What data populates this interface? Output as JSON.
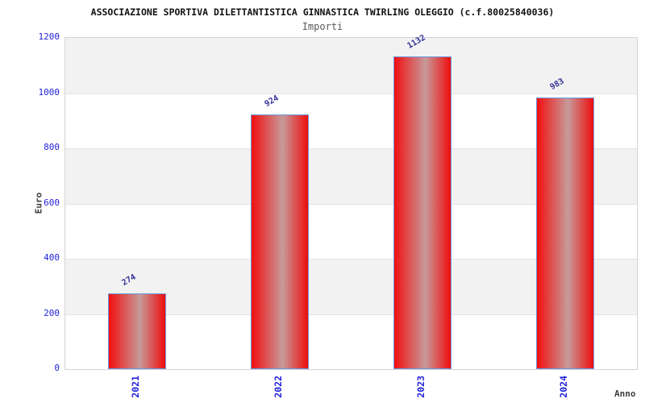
{
  "header": {
    "title": "ASSOCIAZIONE SPORTIVA DILETTANTISTICA GINNASTICA TWIRLING OLEGGIO (c.f.80025840036)",
    "subtitle": "Importi"
  },
  "chart_data": {
    "type": "bar",
    "title": "ASSOCIAZIONE SPORTIVA DILETTANTISTICA GINNASTICA TWIRLING OLEGGIO (c.f.80025840036)",
    "subtitle": "Importi",
    "categories": [
      "2021",
      "2022",
      "2023",
      "2024"
    ],
    "values": [
      274,
      924,
      1132,
      983
    ],
    "xlabel": "Anno",
    "ylabel": "Euro",
    "ylim": [
      0,
      1200
    ],
    "yticks": [
      0,
      200,
      400,
      600,
      800,
      1000,
      1200
    ],
    "grid": "alternating-horizontal-bands",
    "legend": "none",
    "colors": {
      "bar_red": "#f20f0f",
      "bar_red_end": "#ee0d0d",
      "bar_highlight": "#c79a9a",
      "bar_border": "#6a9ae0",
      "value_label": "#333399",
      "tick_label": "#2222dd",
      "band_gray": "#f2f2f2",
      "band_white": "#ffffff"
    }
  }
}
